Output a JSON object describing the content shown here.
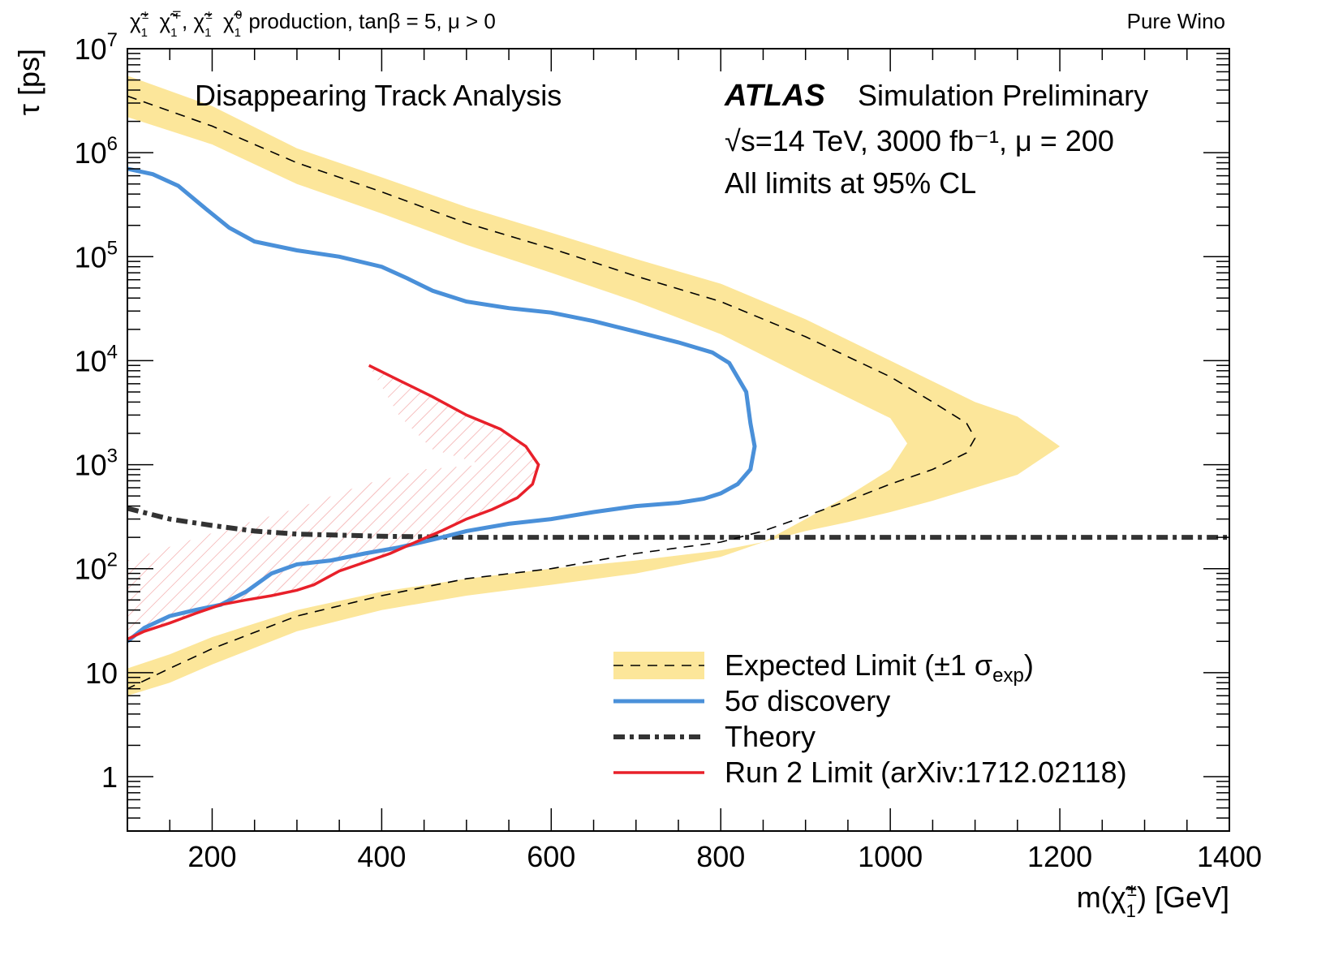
{
  "header": {
    "process_prefix": "χ̃",
    "process_text": "production, tanβ = 5, μ > 0",
    "right_label": "Pure Wino"
  },
  "texts": {
    "analysis": "Disappearing Track Analysis",
    "atlas": "ATLAS",
    "atlas_suffix": "Simulation Preliminary",
    "energy_line": "√s=14 TeV, 3000 fb⁻¹, μ = 200",
    "cl_line": "All limits at 95% CL"
  },
  "chart_data": {
    "type": "line",
    "xlabel": "m(χ̃₁±) [GeV]",
    "ylabel": "τ [ps]",
    "xlim": [
      100,
      1400
    ],
    "ylim": [
      0.3,
      10000000
    ],
    "log_y": true,
    "x_ticks": [
      200,
      400,
      600,
      800,
      1000,
      1200,
      1400
    ],
    "y_ticks": [
      {
        "value": 1,
        "base": "1",
        "exp": ""
      },
      {
        "value": 10,
        "base": "10",
        "exp": ""
      },
      {
        "value": 100,
        "base": "10",
        "exp": "2"
      },
      {
        "value": 1000,
        "base": "10",
        "exp": "3"
      },
      {
        "value": 10000,
        "base": "10",
        "exp": "4"
      },
      {
        "value": 100000,
        "base": "10",
        "exp": "5"
      },
      {
        "value": 1000000,
        "base": "10",
        "exp": "6"
      },
      {
        "value": 10000000,
        "base": "10",
        "exp": "7"
      }
    ],
    "legend": {
      "placement": "bottom-right",
      "entries": [
        {
          "key": "expected",
          "label": "Expected Limit (±1 σexp)"
        },
        {
          "key": "discovery",
          "label": "5σ discovery"
        },
        {
          "key": "theory",
          "label": "Theory"
        },
        {
          "key": "run2",
          "label": "Run 2 Limit (arXiv:1712.02118)"
        }
      ]
    },
    "colors": {
      "band": "#fce69a",
      "expected": "#000000",
      "discovery": "#4a90d9",
      "theory": "#333333",
      "run2": "#e8202a",
      "hatch": "#f2a0a0"
    },
    "series": {
      "band_upper": [
        [
          100,
          5500000
        ],
        [
          200,
          2800000
        ],
        [
          300,
          1100000
        ],
        [
          400,
          580000
        ],
        [
          500,
          300000
        ],
        [
          600,
          170000
        ],
        [
          700,
          95000
        ],
        [
          800,
          55000
        ],
        [
          900,
          25000
        ],
        [
          1000,
          10000
        ],
        [
          1100,
          4000
        ],
        [
          1150,
          2900
        ],
        [
          1200,
          1500
        ],
        [
          1150,
          800
        ],
        [
          1100,
          600
        ],
        [
          1050,
          450
        ],
        [
          1000,
          350
        ],
        [
          950,
          280
        ],
        [
          900,
          230
        ],
        [
          850,
          180
        ],
        [
          800,
          150
        ],
        [
          700,
          120
        ],
        [
          600,
          100
        ],
        [
          500,
          80
        ],
        [
          400,
          60
        ],
        [
          300,
          40
        ],
        [
          200,
          22
        ],
        [
          150,
          15
        ],
        [
          100,
          11
        ]
      ],
      "band_lower": [
        [
          100,
          2200000
        ],
        [
          200,
          1200000
        ],
        [
          300,
          500000
        ],
        [
          400,
          260000
        ],
        [
          500,
          130000
        ],
        [
          600,
          70000
        ],
        [
          700,
          37000
        ],
        [
          800,
          18000
        ],
        [
          900,
          7000
        ],
        [
          1000,
          2800
        ],
        [
          1020,
          1600
        ],
        [
          1000,
          900
        ],
        [
          950,
          500
        ],
        [
          900,
          300
        ],
        [
          850,
          180
        ],
        [
          800,
          130
        ],
        [
          700,
          90
        ],
        [
          600,
          70
        ],
        [
          500,
          55
        ],
        [
          400,
          40
        ],
        [
          300,
          25
        ],
        [
          200,
          12
        ],
        [
          150,
          8
        ],
        [
          100,
          6
        ]
      ],
      "expected": [
        [
          100,
          3500000
        ],
        [
          200,
          1800000
        ],
        [
          300,
          800000
        ],
        [
          400,
          420000
        ],
        [
          500,
          210000
        ],
        [
          600,
          120000
        ],
        [
          700,
          65000
        ],
        [
          800,
          37000
        ],
        [
          900,
          17000
        ],
        [
          1000,
          7000
        ],
        [
          1050,
          4000
        ],
        [
          1090,
          2500
        ],
        [
          1100,
          1800
        ],
        [
          1090,
          1300
        ],
        [
          1050,
          900
        ],
        [
          1000,
          650
        ],
        [
          950,
          450
        ],
        [
          900,
          320
        ],
        [
          850,
          230
        ],
        [
          800,
          180
        ],
        [
          700,
          140
        ],
        [
          600,
          100
        ],
        [
          500,
          80
        ],
        [
          400,
          55
        ],
        [
          300,
          35
        ],
        [
          200,
          17
        ],
        [
          150,
          11
        ],
        [
          100,
          7
        ]
      ],
      "discovery": [
        [
          100,
          700000
        ],
        [
          130,
          620000
        ],
        [
          160,
          480000
        ],
        [
          190,
          300000
        ],
        [
          220,
          190000
        ],
        [
          250,
          140000
        ],
        [
          300,
          115000
        ],
        [
          350,
          100000
        ],
        [
          400,
          80000
        ],
        [
          430,
          62000
        ],
        [
          460,
          47000
        ],
        [
          500,
          37000
        ],
        [
          550,
          32000
        ],
        [
          600,
          29000
        ],
        [
          650,
          24000
        ],
        [
          700,
          19000
        ],
        [
          750,
          15000
        ],
        [
          790,
          12000
        ],
        [
          810,
          9500
        ],
        [
          830,
          5000
        ],
        [
          835,
          2500
        ],
        [
          840,
          1500
        ],
        [
          835,
          900
        ],
        [
          820,
          650
        ],
        [
          800,
          530
        ],
        [
          780,
          470
        ],
        [
          750,
          430
        ],
        [
          700,
          400
        ],
        [
          650,
          350
        ],
        [
          600,
          300
        ],
        [
          550,
          270
        ],
        [
          500,
          230
        ],
        [
          460,
          190
        ],
        [
          420,
          160
        ],
        [
          380,
          140
        ],
        [
          340,
          120
        ],
        [
          300,
          110
        ],
        [
          270,
          90
        ],
        [
          240,
          60
        ],
        [
          210,
          45
        ],
        [
          180,
          40
        ],
        [
          150,
          35
        ],
        [
          120,
          27
        ],
        [
          100,
          20
        ]
      ],
      "theory": [
        [
          100,
          380
        ],
        [
          150,
          300
        ],
        [
          200,
          260
        ],
        [
          250,
          230
        ],
        [
          300,
          215
        ],
        [
          350,
          210
        ],
        [
          400,
          205
        ],
        [
          500,
          200
        ],
        [
          600,
          200
        ],
        [
          800,
          200
        ],
        [
          1000,
          200
        ],
        [
          1200,
          200
        ],
        [
          1400,
          200
        ]
      ],
      "run2": [
        [
          385,
          9000
        ],
        [
          420,
          6500
        ],
        [
          460,
          4500
        ],
        [
          500,
          3000
        ],
        [
          540,
          2200
        ],
        [
          570,
          1500
        ],
        [
          585,
          1000
        ],
        [
          578,
          650
        ],
        [
          560,
          480
        ],
        [
          530,
          370
        ],
        [
          500,
          300
        ],
        [
          470,
          230
        ],
        [
          440,
          180
        ],
        [
          410,
          140
        ],
        [
          380,
          115
        ],
        [
          350,
          95
        ],
        [
          320,
          70
        ],
        [
          300,
          62
        ],
        [
          270,
          55
        ],
        [
          240,
          50
        ],
        [
          210,
          45
        ],
        [
          180,
          37
        ],
        [
          150,
          30
        ],
        [
          120,
          25
        ],
        [
          100,
          21
        ]
      ],
      "run2_excluded": [
        [
          385,
          9000
        ],
        [
          420,
          6500
        ],
        [
          460,
          4500
        ],
        [
          500,
          3000
        ],
        [
          540,
          2200
        ],
        [
          570,
          1500
        ],
        [
          585,
          1000
        ],
        [
          578,
          650
        ],
        [
          560,
          480
        ],
        [
          530,
          370
        ],
        [
          500,
          300
        ],
        [
          470,
          230
        ],
        [
          440,
          180
        ],
        [
          410,
          140
        ],
        [
          380,
          115
        ],
        [
          350,
          95
        ],
        [
          320,
          70
        ],
        [
          300,
          62
        ],
        [
          270,
          55
        ],
        [
          240,
          50
        ],
        [
          210,
          45
        ],
        [
          180,
          37
        ],
        [
          150,
          30
        ],
        [
          120,
          25
        ],
        [
          100,
          21
        ],
        [
          100,
          120
        ],
        [
          200,
          220
        ],
        [
          300,
          380
        ],
        [
          380,
          650
        ],
        [
          450,
          900
        ],
        [
          520,
          1000
        ],
        [
          460,
          1400
        ],
        [
          420,
          3000
        ],
        [
          385,
          9000
        ]
      ]
    }
  }
}
